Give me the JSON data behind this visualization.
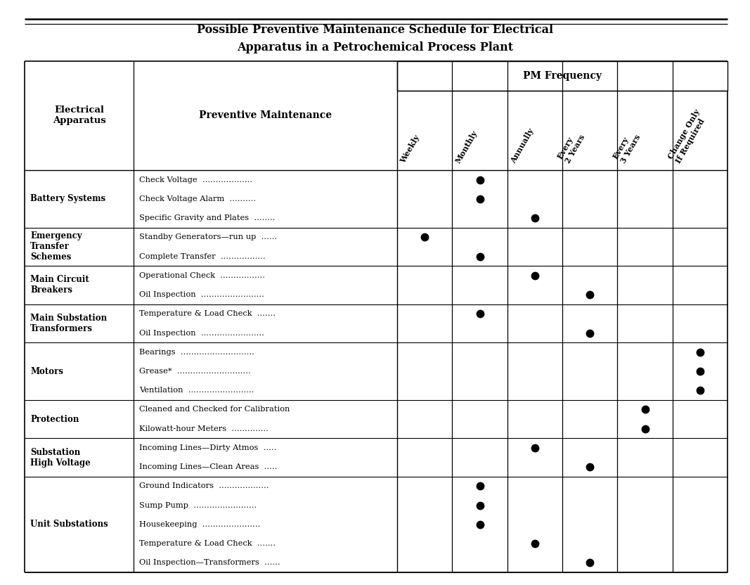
{
  "title_line1": "Possible Preventive Maintenance Schedule for Electrical",
  "title_line2": "Apparatus in a Petrochemical Process Plant",
  "col_headers": [
    "Weekly",
    "Monthly",
    "Annually",
    "Every\n2 Years",
    "Every\n3 Years",
    "Change Only\nIf Required"
  ],
  "pm_frequency_label": "PM Frequency",
  "col1_header": "Electrical\nApparatus",
  "col2_header": "Preventive Maintenance",
  "rows": [
    {
      "apparatus": "Battery Systems",
      "items": [
        {
          "text": "Check Voltage  ...................",
          "dots": [
            0,
            1,
            0,
            0,
            0,
            0
          ]
        },
        {
          "text": "Check Voltage Alarm  ..........",
          "dots": [
            0,
            1,
            0,
            0,
            0,
            0
          ]
        },
        {
          "text": "Specific Gravity and Plates  ........",
          "dots": [
            0,
            0,
            1,
            0,
            0,
            0
          ]
        }
      ]
    },
    {
      "apparatus": "Emergency\nTransfer\nSchemes",
      "items": [
        {
          "text": "Standby Generators—run up  ......",
          "dots": [
            1,
            0,
            0,
            0,
            0,
            0
          ]
        },
        {
          "text": "Complete Transfer  .................",
          "dots": [
            0,
            1,
            0,
            0,
            0,
            0
          ]
        }
      ]
    },
    {
      "apparatus": "Main Circuit\nBreakers",
      "items": [
        {
          "text": "Operational Check  .................",
          "dots": [
            0,
            0,
            1,
            0,
            0,
            0
          ]
        },
        {
          "text": "Oil Inspection  ........................",
          "dots": [
            0,
            0,
            0,
            1,
            0,
            0
          ]
        }
      ]
    },
    {
      "apparatus": "Main Substation\nTransformers",
      "items": [
        {
          "text": "Temperature & Load Check  .......",
          "dots": [
            0,
            1,
            0,
            0,
            0,
            0
          ]
        },
        {
          "text": "Oil Inspection  ........................",
          "dots": [
            0,
            0,
            0,
            1,
            0,
            0
          ]
        }
      ]
    },
    {
      "apparatus": "Motors",
      "items": [
        {
          "text": "Bearings  ............................",
          "dots": [
            0,
            0,
            0,
            0,
            0,
            1
          ]
        },
        {
          "text": "Grease*  ............................",
          "dots": [
            0,
            0,
            0,
            0,
            0,
            1
          ]
        },
        {
          "text": "Ventilation  .........................",
          "dots": [
            0,
            0,
            0,
            0,
            0,
            1
          ]
        }
      ]
    },
    {
      "apparatus": "Protection",
      "items": [
        {
          "text": "Cleaned and Checked for Calibration",
          "dots": [
            0,
            0,
            0,
            0,
            1,
            0
          ]
        },
        {
          "text": "Kilowatt-hour Meters  ..............",
          "dots": [
            0,
            0,
            0,
            0,
            1,
            0
          ]
        }
      ]
    },
    {
      "apparatus": "Substation\nHigh Voltage",
      "items": [
        {
          "text": "Incoming Lines—Dirty Atmos  .....",
          "dots": [
            0,
            0,
            1,
            0,
            0,
            0
          ]
        },
        {
          "text": "Incoming Lines—Clean Areas  .....",
          "dots": [
            0,
            0,
            0,
            1,
            0,
            0
          ]
        }
      ]
    },
    {
      "apparatus": "Unit Substations",
      "items": [
        {
          "text": "Ground Indicators  ...................",
          "dots": [
            0,
            1,
            0,
            0,
            0,
            0
          ]
        },
        {
          "text": "Sump Pump  ........................",
          "dots": [
            0,
            1,
            0,
            0,
            0,
            0
          ]
        },
        {
          "text": "Housekeeping  ......................",
          "dots": [
            0,
            1,
            0,
            0,
            0,
            0
          ]
        },
        {
          "text": "Temperature & Load Check  .......",
          "dots": [
            0,
            0,
            1,
            0,
            0,
            0
          ]
        },
        {
          "text": "Oil Inspection—Transformers  ......",
          "dots": [
            0,
            0,
            0,
            1,
            0,
            0
          ]
        }
      ]
    }
  ],
  "bg_color": "#ffffff",
  "dot_color": "#000000",
  "figsize": [
    10.67,
    8.32
  ],
  "dpi": 100
}
